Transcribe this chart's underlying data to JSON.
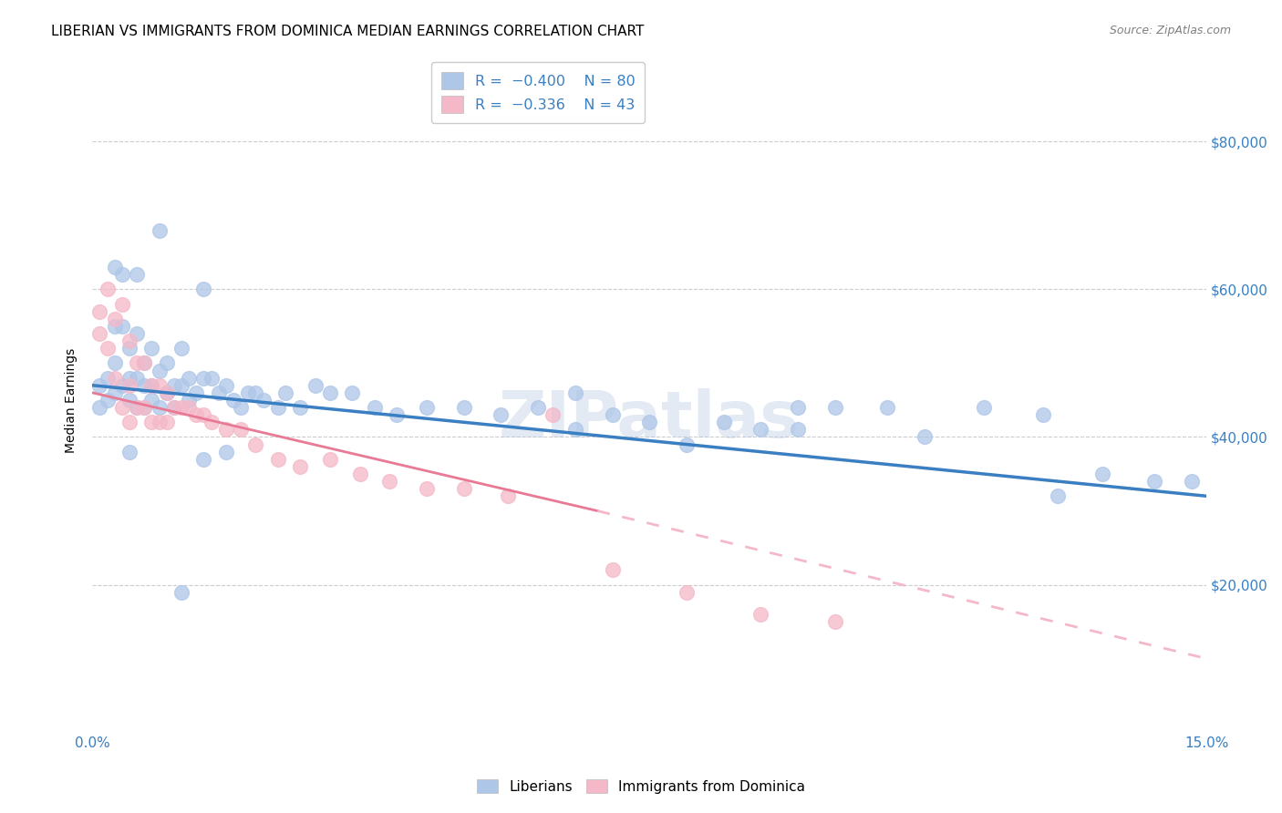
{
  "title": "LIBERIAN VS IMMIGRANTS FROM DOMINICA MEDIAN EARNINGS CORRELATION CHART",
  "source": "Source: ZipAtlas.com",
  "ylabel": "Median Earnings",
  "y_ticks": [
    20000,
    40000,
    60000,
    80000
  ],
  "y_tick_labels": [
    "$20,000",
    "$40,000",
    "$60,000",
    "$80,000"
  ],
  "xlim": [
    0.0,
    0.15
  ],
  "ylim": [
    0,
    90000
  ],
  "watermark": "ZIPatlas",
  "blue_line_x0": 0.0,
  "blue_line_y0": 47000,
  "blue_line_x1": 0.15,
  "blue_line_y1": 32000,
  "pink_line_solid_x0": 0.0,
  "pink_line_solid_y0": 46000,
  "pink_line_solid_x1": 0.068,
  "pink_line_solid_y1": 30000,
  "pink_line_dash_x0": 0.068,
  "pink_line_dash_y0": 30000,
  "pink_line_dash_x1": 0.15,
  "pink_line_dash_y1": 10000,
  "blue_scatter_x": [
    0.001,
    0.001,
    0.002,
    0.002,
    0.003,
    0.003,
    0.003,
    0.004,
    0.004,
    0.004,
    0.005,
    0.005,
    0.005,
    0.006,
    0.006,
    0.006,
    0.007,
    0.007,
    0.007,
    0.008,
    0.008,
    0.008,
    0.009,
    0.009,
    0.01,
    0.01,
    0.011,
    0.011,
    0.012,
    0.012,
    0.013,
    0.013,
    0.014,
    0.015,
    0.015,
    0.016,
    0.017,
    0.018,
    0.019,
    0.02,
    0.021,
    0.022,
    0.023,
    0.025,
    0.026,
    0.028,
    0.03,
    0.032,
    0.035,
    0.038,
    0.041,
    0.045,
    0.05,
    0.055,
    0.06,
    0.065,
    0.07,
    0.075,
    0.08,
    0.085,
    0.09,
    0.095,
    0.1,
    0.107,
    0.112,
    0.12,
    0.128,
    0.136,
    0.143,
    0.148,
    0.003,
    0.006,
    0.009,
    0.012,
    0.015,
    0.065,
    0.095,
    0.13,
    0.005,
    0.018
  ],
  "blue_scatter_y": [
    47000,
    44000,
    48000,
    45000,
    55000,
    50000,
    46000,
    62000,
    55000,
    47000,
    52000,
    48000,
    45000,
    54000,
    48000,
    44000,
    50000,
    47000,
    44000,
    52000,
    47000,
    45000,
    49000,
    44000,
    50000,
    46000,
    47000,
    44000,
    52000,
    47000,
    48000,
    45000,
    46000,
    60000,
    48000,
    48000,
    46000,
    47000,
    45000,
    44000,
    46000,
    46000,
    45000,
    44000,
    46000,
    44000,
    47000,
    46000,
    46000,
    44000,
    43000,
    44000,
    44000,
    43000,
    44000,
    41000,
    43000,
    42000,
    39000,
    42000,
    41000,
    41000,
    44000,
    44000,
    40000,
    44000,
    43000,
    35000,
    34000,
    34000,
    63000,
    62000,
    68000,
    19000,
    37000,
    46000,
    44000,
    32000,
    38000,
    38000
  ],
  "pink_scatter_x": [
    0.001,
    0.001,
    0.002,
    0.002,
    0.003,
    0.003,
    0.004,
    0.004,
    0.005,
    0.005,
    0.005,
    0.006,
    0.006,
    0.007,
    0.007,
    0.008,
    0.008,
    0.009,
    0.009,
    0.01,
    0.01,
    0.011,
    0.012,
    0.013,
    0.014,
    0.015,
    0.016,
    0.018,
    0.02,
    0.022,
    0.025,
    0.028,
    0.032,
    0.036,
    0.04,
    0.045,
    0.05,
    0.056,
    0.062,
    0.07,
    0.08,
    0.09,
    0.1
  ],
  "pink_scatter_y": [
    57000,
    54000,
    60000,
    52000,
    56000,
    48000,
    58000,
    44000,
    53000,
    47000,
    42000,
    50000,
    44000,
    50000,
    44000,
    47000,
    42000,
    47000,
    42000,
    46000,
    42000,
    44000,
    44000,
    44000,
    43000,
    43000,
    42000,
    41000,
    41000,
    39000,
    37000,
    36000,
    37000,
    35000,
    34000,
    33000,
    33000,
    32000,
    43000,
    22000,
    19000,
    16000,
    15000
  ],
  "blue_line_color": "#3a7fc1",
  "pink_solid_color": "#e87a96",
  "pink_dash_color": "#f4b8c8",
  "scatter_blue_color": "#aec6e8",
  "scatter_pink_color": "#f4b8c8",
  "scatter_size": 130,
  "scatter_alpha": 0.75,
  "grid_color": "#cccccc",
  "grid_linestyle": "--",
  "title_fontsize": 11,
  "source_fontsize": 9,
  "axis_label_fontsize": 10,
  "tick_label_color": "#3a7fc1",
  "legend_R_color": "#3a7fc1",
  "background_color": "#ffffff"
}
